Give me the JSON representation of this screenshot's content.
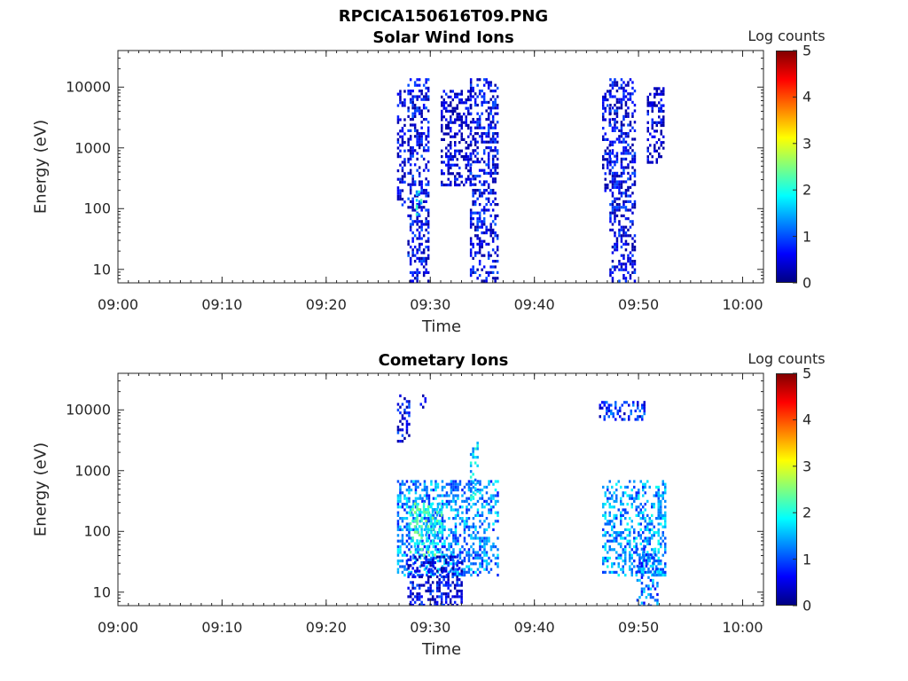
{
  "figure": {
    "title": "RPCICA150616T09.PNG"
  },
  "colors": {
    "colormap": [
      "#00007f",
      "#0000ff",
      "#007fff",
      "#00ffff",
      "#7fff7f",
      "#ffff00",
      "#ff7f00",
      "#ff0000",
      "#7f0000"
    ],
    "axis": "#262626"
  },
  "chart_data": [
    {
      "type": "heatmap",
      "title": "Solar Wind Ions",
      "xlabel": "Time",
      "ylabel": "Energy (eV)",
      "xticks": [
        "09:00",
        "09:10",
        "09:20",
        "09:30",
        "09:40",
        "09:50",
        "10:00"
      ],
      "xtick_minutes": [
        0,
        10,
        20,
        30,
        40,
        50,
        60
      ],
      "yticks": [
        "10",
        "100",
        "1000",
        "10000"
      ],
      "ytick_values": [
        10,
        100,
        1000,
        10000
      ],
      "xlim_minutes": [
        0,
        62
      ],
      "ylim": [
        6,
        40000
      ],
      "yscale": "log",
      "colorbar": {
        "label": "Log counts",
        "ticks": [
          "0",
          "1",
          "2",
          "3",
          "4",
          "5"
        ],
        "range": [
          0,
          5
        ]
      },
      "activity": [
        {
          "t_start": 26.8,
          "t_end": 27.5,
          "e_min": 120,
          "e_max": 9000,
          "level": 0.4
        },
        {
          "t_start": 27.8,
          "t_end": 29.8,
          "e_min": 6,
          "e_max": 14000,
          "level": 0.5
        },
        {
          "t_start": 28.6,
          "t_end": 29.2,
          "e_min": 80,
          "e_max": 200,
          "level": 1.7
        },
        {
          "t_start": 31.0,
          "t_end": 33.8,
          "e_min": 250,
          "e_max": 9000,
          "level": 0.3
        },
        {
          "t_start": 33.8,
          "t_end": 36.4,
          "e_min": 6,
          "e_max": 14000,
          "level": 0.5
        },
        {
          "t_start": 46.5,
          "t_end": 47.2,
          "e_min": 200,
          "e_max": 9000,
          "level": 0.4
        },
        {
          "t_start": 47.2,
          "t_end": 49.6,
          "e_min": 6,
          "e_max": 14000,
          "level": 0.5
        },
        {
          "t_start": 50.8,
          "t_end": 52.4,
          "e_min": 600,
          "e_max": 10000,
          "level": 0.3
        }
      ]
    },
    {
      "type": "heatmap",
      "title": "Cometary Ions",
      "xlabel": "Time",
      "ylabel": "Energy (eV)",
      "xticks": [
        "09:00",
        "09:10",
        "09:20",
        "09:30",
        "09:40",
        "09:50",
        "10:00"
      ],
      "xtick_minutes": [
        0,
        10,
        20,
        30,
        40,
        50,
        60
      ],
      "yticks": [
        "10",
        "100",
        "1000",
        "10000"
      ],
      "ytick_values": [
        10,
        100,
        1000,
        10000
      ],
      "xlim_minutes": [
        0,
        62
      ],
      "ylim": [
        6,
        40000
      ],
      "yscale": "log",
      "colorbar": {
        "label": "Log counts",
        "ticks": [
          "0",
          "1",
          "2",
          "3",
          "4",
          "5"
        ],
        "range": [
          0,
          5
        ]
      },
      "activity": [
        {
          "t_start": 26.8,
          "t_end": 28.0,
          "e_min": 3000,
          "e_max": 18000,
          "level": 0.5
        },
        {
          "t_start": 29.0,
          "t_end": 29.6,
          "e_min": 9000,
          "e_max": 18000,
          "level": 0.4
        },
        {
          "t_start": 26.8,
          "t_end": 36.5,
          "e_min": 20,
          "e_max": 700,
          "level": 1.3
        },
        {
          "t_start": 28.0,
          "t_end": 31.0,
          "e_min": 40,
          "e_max": 300,
          "level": 2.0
        },
        {
          "t_start": 33.8,
          "t_end": 34.6,
          "e_min": 300,
          "e_max": 3000,
          "level": 1.6
        },
        {
          "t_start": 27.8,
          "t_end": 33.0,
          "e_min": 6,
          "e_max": 40,
          "level": 0.5
        },
        {
          "t_start": 46.5,
          "t_end": 52.6,
          "e_min": 20,
          "e_max": 700,
          "level": 1.4
        },
        {
          "t_start": 49.8,
          "t_end": 51.8,
          "e_min": 6,
          "e_max": 60,
          "level": 1.2
        },
        {
          "t_start": 46.2,
          "t_end": 50.5,
          "e_min": 7000,
          "e_max": 14000,
          "level": 0.8
        }
      ]
    }
  ]
}
